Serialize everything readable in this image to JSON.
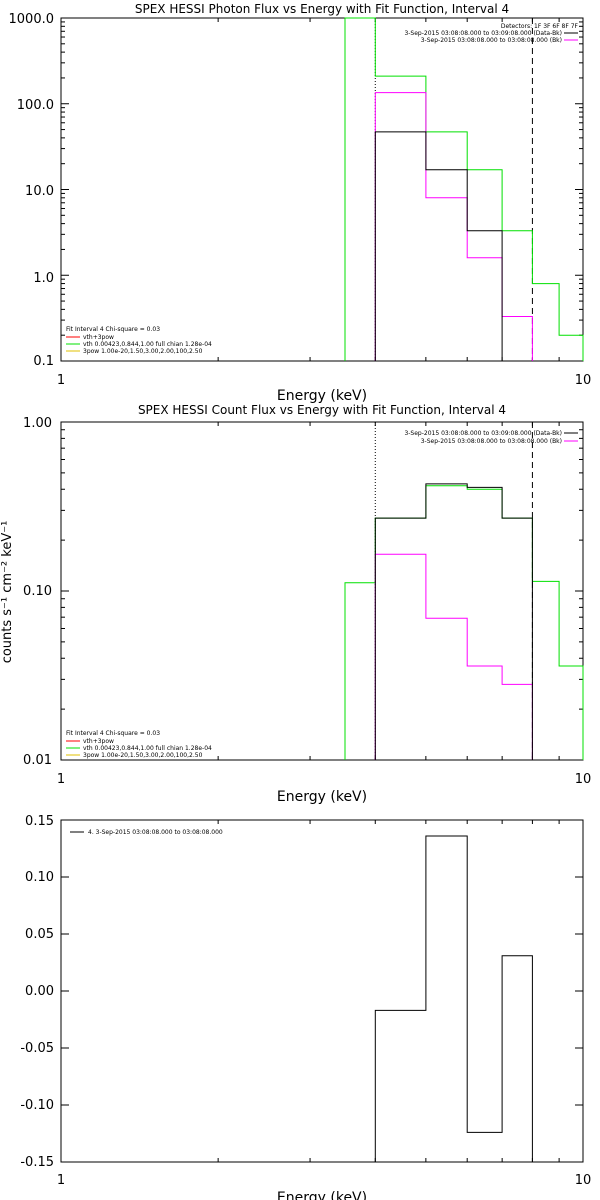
{
  "colors": {
    "background": "#ffffff",
    "axes": "#000000",
    "data_minus_bk": "#000000",
    "background_model": "#ff00ff",
    "fit_total": "#ff0000",
    "fit_vth": "#00e000",
    "fit_3pow": "#e0c000"
  },
  "chart_data": [
    {
      "type": "line",
      "title": "SPEX HESSI Photon Flux vs Energy with Fit Function, Interval 4",
      "xlabel": "Energy (keV)",
      "ylabel": "",
      "xscale": "log",
      "yscale": "log",
      "xlim": [
        1,
        10
      ],
      "ylim": [
        0.1,
        1000
      ],
      "x_ticks": [
        "1",
        "10"
      ],
      "y_ticks": [
        "0.1",
        "1.0",
        "10.0",
        "100.0",
        "1000.0"
      ],
      "y_tick_values": [
        0.1,
        1,
        10,
        100,
        1000
      ],
      "energy_edges": [
        3.5,
        4.0,
        5.0,
        6.0,
        7.0,
        8.0,
        9.0,
        10.0
      ],
      "vertical_lines": [
        {
          "x": 4.0,
          "style": "dotted",
          "color": "#000000"
        },
        {
          "x": 8.0,
          "style": "dashed",
          "color": "#000000"
        }
      ],
      "header": {
        "detectors": "Detectors: 1F 3F 6F 8F 7F",
        "lines": [
          "3-Sep-2015 03:08:08.000 to 03:09:08.000 (Data-Bk)",
          "3-Sep-2015 03:08:08.000 to 03:08:08.000 (Bk)"
        ]
      },
      "fit_legend": {
        "heading": "Fit Interval 4   Chi-square = 0.03",
        "entries": [
          "vth+3pow",
          "vth 0.00423,0.844,1.00  full chian 1.28e-04",
          "3pow 1.00e-20,1.50,3.00,2.00,100,2.50"
        ]
      },
      "series": [
        {
          "name": "3-Sep-2015 03:08:08.000 to 03:09:08.000 (Data-Bk)",
          "color": "#000000",
          "values": [
            null,
            47,
            17,
            3.3,
            null,
            null,
            null
          ]
        },
        {
          "name": "3-Sep-2015 03:08:08.000 to 03:08:08.000 (Bk)",
          "color": "#ff00ff",
          "values": [
            null,
            135,
            8,
            1.6,
            0.33,
            null,
            null
          ]
        },
        {
          "name": "vth",
          "color": "#00e000",
          "values": [
            1000,
            210,
            47,
            17,
            3.3,
            0.8,
            0.2
          ]
        }
      ]
    },
    {
      "type": "line",
      "title": "SPEX HESSI Count Flux vs Energy with Fit Function, Interval 4",
      "xlabel": "Energy (keV)",
      "ylabel": "counts s⁻¹ cm⁻² keV⁻¹",
      "xscale": "log",
      "yscale": "log",
      "xlim": [
        1,
        10
      ],
      "ylim": [
        0.01,
        1
      ],
      "x_ticks": [
        "1",
        "10"
      ],
      "y_ticks": [
        "0.01",
        "0.10",
        "1.00"
      ],
      "y_tick_values": [
        0.01,
        0.1,
        1
      ],
      "energy_edges": [
        3.5,
        4.0,
        5.0,
        6.0,
        7.0,
        8.0,
        9.0,
        10.0
      ],
      "vertical_lines": [
        {
          "x": 4.0,
          "style": "dotted",
          "color": "#000000"
        },
        {
          "x": 8.0,
          "style": "dashed",
          "color": "#000000"
        }
      ],
      "header": {
        "detectors": "",
        "lines": [
          "3-Sep-2015 03:08:08.000 to 03:09:08.000 (Data-Bk)",
          "3-Sep-2015 03:08:08.000 to 03:08:08.000 (Bk)"
        ]
      },
      "fit_legend": {
        "heading": "Fit Interval 4   Chi-square = 0.03",
        "entries": [
          "vth+3pow",
          "vth 0.00423,0.844,1.00  full chian 1.28e-04",
          "3pow 1.00e-20,1.50,3.00,2.00,100,2.50"
        ]
      },
      "series": [
        {
          "name": "3-Sep-2015 03:08:08.000 to 03:09:08.000 (Data-Bk)",
          "color": "#000000",
          "values": [
            null,
            0.27,
            0.43,
            0.41,
            0.27,
            null,
            null
          ]
        },
        {
          "name": "3-Sep-2015 03:08:08.000 to 03:08:08.000 (Bk)",
          "color": "#ff00ff",
          "values": [
            null,
            0.165,
            0.069,
            0.036,
            0.028,
            null,
            null
          ]
        },
        {
          "name": "vth",
          "color": "#00e000",
          "values": [
            0.112,
            0.27,
            0.42,
            0.4,
            0.27,
            0.114,
            0.036
          ]
        }
      ]
    },
    {
      "type": "line",
      "title": "",
      "xlabel": "Energy (keV)",
      "ylabel": "",
      "xscale": "log",
      "yscale": "linear",
      "xlim": [
        1,
        10
      ],
      "ylim": [
        -0.15,
        0.15
      ],
      "x_ticks": [
        "1",
        "10"
      ],
      "y_ticks": [
        "-0.15",
        "-0.10",
        "-0.05",
        "0.00",
        "0.05",
        "0.10",
        "0.15"
      ],
      "y_tick_values": [
        -0.15,
        -0.1,
        -0.05,
        0.0,
        0.05,
        0.1,
        0.15
      ],
      "energy_edges": [
        4.0,
        5.0,
        6.0,
        7.0,
        8.0
      ],
      "legend": [
        "4. 3-Sep-2015 03:08:08.000 to 03:08:08.000"
      ],
      "series": [
        {
          "name": "4. 3-Sep-2015 03:08:08.000 to 03:08:08.000",
          "color": "#000000",
          "values": [
            -0.017,
            0.136,
            -0.124,
            0.031
          ]
        }
      ]
    }
  ]
}
